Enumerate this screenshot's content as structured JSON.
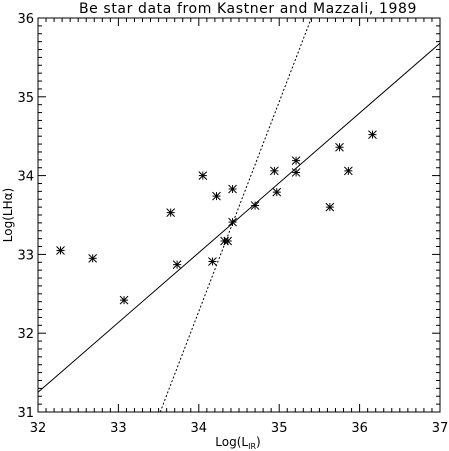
{
  "chart_data": {
    "type": "scatter",
    "title": "Be star data from Kastner and Mazzali, 1989",
    "xlabel": "Log(L",
    "xlabel_subscript": "IR",
    "xlabel_suffix": ")",
    "ylabel": "Log(LHα)",
    "xlim": [
      32,
      37
    ],
    "ylim": [
      31,
      36
    ],
    "xticks": [
      32,
      33,
      34,
      35,
      36,
      37
    ],
    "yticks": [
      31,
      32,
      33,
      34,
      35,
      36
    ],
    "marker": "asterisk",
    "grid": false,
    "points": [
      {
        "x": 32.28,
        "y": 33.05
      },
      {
        "x": 32.68,
        "y": 32.95
      },
      {
        "x": 33.07,
        "y": 32.42
      },
      {
        "x": 33.65,
        "y": 33.53
      },
      {
        "x": 33.73,
        "y": 32.87
      },
      {
        "x": 34.05,
        "y": 34.0
      },
      {
        "x": 34.17,
        "y": 32.91
      },
      {
        "x": 34.22,
        "y": 33.74
      },
      {
        "x": 34.32,
        "y": 33.17
      },
      {
        "x": 34.36,
        "y": 33.17
      },
      {
        "x": 34.42,
        "y": 33.41
      },
      {
        "x": 34.42,
        "y": 33.83
      },
      {
        "x": 34.7,
        "y": 33.62
      },
      {
        "x": 34.94,
        "y": 34.06
      },
      {
        "x": 34.97,
        "y": 33.79
      },
      {
        "x": 35.21,
        "y": 34.19
      },
      {
        "x": 35.21,
        "y": 34.04
      },
      {
        "x": 35.63,
        "y": 33.6
      },
      {
        "x": 35.75,
        "y": 34.36
      },
      {
        "x": 35.86,
        "y": 34.06
      },
      {
        "x": 36.16,
        "y": 34.52
      }
    ],
    "fit_lines": [
      {
        "style": "solid",
        "x": [
          32,
          37
        ],
        "y": [
          31.25,
          35.68
        ]
      },
      {
        "style": "dotted",
        "x": [
          33.52,
          35.4
        ],
        "y": [
          31.0,
          36.0
        ]
      }
    ]
  }
}
